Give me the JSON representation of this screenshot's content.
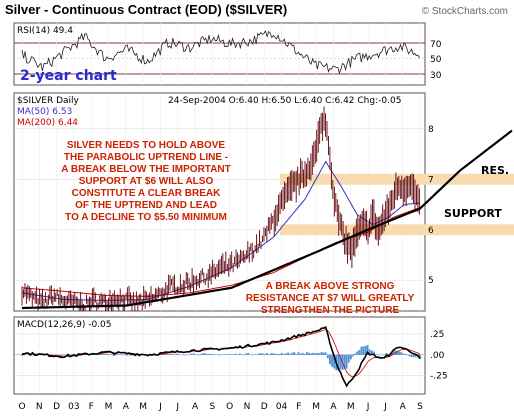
{
  "header": {
    "title": "Silver - Continuous Contract (EOD) ($SILVER)",
    "credit": "© StockCharts.com"
  },
  "rsi_panel": {
    "label": "RSI(14) 49.4",
    "ticks": [
      "70",
      "50",
      "30"
    ],
    "caption": "2-year chart",
    "chart_data": {
      "type": "line",
      "series": [
        {
          "name": "RSI(14)",
          "last": 49.4
        }
      ],
      "ylim": [
        20,
        85
      ],
      "reference_lines": [
        70,
        30
      ],
      "key_points": [
        [
          0,
          52
        ],
        [
          20,
          38
        ],
        [
          40,
          55
        ],
        [
          60,
          72
        ],
        [
          80,
          48
        ],
        [
          100,
          58
        ],
        [
          120,
          45
        ],
        [
          140,
          66
        ],
        [
          160,
          60
        ],
        [
          180,
          70
        ],
        [
          200,
          64
        ],
        [
          220,
          68
        ],
        [
          240,
          78
        ],
        [
          260,
          58
        ],
        [
          280,
          40
        ],
        [
          300,
          36
        ],
        [
          320,
          48
        ],
        [
          340,
          55
        ],
        [
          360,
          62
        ],
        [
          380,
          52
        ],
        [
          400,
          60
        ],
        [
          410,
          38
        ],
        [
          420,
          49
        ]
      ]
    }
  },
  "price_panel": {
    "symbol_label": "$SILVER Daily",
    "ma50_label": "MA(50) 6.53",
    "ma200_label": "MA(200) 6.44",
    "quote": "24-Sep-2004 O:6.40 H:6.50 L:6.40 C:6.42 Chg:-0.05",
    "price_ticks": [
      "8",
      "7",
      "6",
      "5"
    ],
    "annotation_main": [
      "SILVER NEEDS TO HOLD ABOVE",
      "THE PARABOLIC UPTREND LINE -",
      "A BREAK BELOW THE IMPORTANT",
      "SUPPORT AT $6 WILL ALSO",
      "CONSTITUTE A CLEAR BREAK",
      "OF THE UPTREND AND LEAD",
      "TO A DECLINE TO $5.50 MINIMUM"
    ],
    "annotation_breakout": [
      "A BREAK ABOVE STRONG",
      "RESISTANCE AT $7 WILL GREATLY",
      "STRENGTHEN THE PICTURE"
    ],
    "res_label": "RES.",
    "support_label": "SUPPORT",
    "chart_data": {
      "type": "line",
      "title": "Silver - Continuous Contract (EOD) ($SILVER)",
      "ylim": [
        4.45,
        8.65
      ],
      "last_quote": {
        "date": "24-Sep-2004",
        "open": 6.4,
        "high": 6.5,
        "low": 6.4,
        "close": 6.42,
        "change": -0.05
      },
      "resistance": 7.0,
      "support": 6.0,
      "series": [
        {
          "name": "MA(50)",
          "last": 6.53
        },
        {
          "name": "MA(200)",
          "last": 6.44
        }
      ],
      "price_key_points": [
        [
          0,
          4.8
        ],
        [
          10,
          4.65
        ],
        [
          20,
          4.55
        ],
        [
          30,
          4.7
        ],
        [
          40,
          4.6
        ],
        [
          50,
          4.55
        ],
        [
          60,
          4.5
        ],
        [
          70,
          4.6
        ],
        [
          80,
          4.55
        ],
        [
          90,
          4.65
        ],
        [
          100,
          4.6
        ],
        [
          110,
          4.55
        ],
        [
          120,
          4.6
        ],
        [
          130,
          4.7
        ],
        [
          140,
          4.85
        ],
        [
          150,
          4.9
        ],
        [
          160,
          4.95
        ],
        [
          170,
          5.05
        ],
        [
          180,
          5.1
        ],
        [
          190,
          5.25
        ],
        [
          200,
          5.3
        ],
        [
          210,
          5.4
        ],
        [
          220,
          5.6
        ],
        [
          230,
          5.8
        ],
        [
          240,
          6.2
        ],
        [
          250,
          6.6
        ],
        [
          260,
          6.9
        ],
        [
          270,
          7.1
        ],
        [
          280,
          7.5
        ],
        [
          285,
          8.0
        ],
        [
          288,
          8.2
        ],
        [
          292,
          7.9
        ],
        [
          296,
          7.0
        ],
        [
          300,
          6.4
        ],
        [
          305,
          6.0
        ],
        [
          310,
          5.7
        ],
        [
          315,
          5.6
        ],
        [
          320,
          5.9
        ],
        [
          325,
          6.1
        ],
        [
          330,
          6.0
        ],
        [
          335,
          6.3
        ],
        [
          340,
          5.95
        ],
        [
          345,
          6.2
        ],
        [
          350,
          6.4
        ],
        [
          355,
          6.7
        ],
        [
          360,
          6.9
        ],
        [
          365,
          6.8
        ],
        [
          370,
          6.95
        ],
        [
          375,
          6.7
        ],
        [
          378,
          6.6
        ],
        [
          380,
          6.42
        ]
      ],
      "ma50_key_points": [
        [
          0,
          4.75
        ],
        [
          40,
          4.62
        ],
        [
          80,
          4.6
        ],
        [
          120,
          4.62
        ],
        [
          160,
          4.88
        ],
        [
          200,
          5.25
        ],
        [
          240,
          5.85
        ],
        [
          270,
          6.6
        ],
        [
          290,
          7.35
        ],
        [
          305,
          6.85
        ],
        [
          320,
          6.3
        ],
        [
          335,
          6.1
        ],
        [
          350,
          6.25
        ],
        [
          365,
          6.5
        ],
        [
          380,
          6.53
        ]
      ],
      "ma200_key_points": [
        [
          0,
          4.85
        ],
        [
          40,
          4.78
        ],
        [
          80,
          4.7
        ],
        [
          120,
          4.68
        ],
        [
          160,
          4.75
        ],
        [
          200,
          4.9
        ],
        [
          240,
          5.15
        ],
        [
          270,
          5.45
        ],
        [
          300,
          5.75
        ],
        [
          330,
          5.95
        ],
        [
          355,
          6.25
        ],
        [
          380,
          6.44
        ]
      ],
      "uptrend_line": [
        [
          0,
          4.45
        ],
        [
          100,
          4.5
        ],
        [
          200,
          4.85
        ],
        [
          280,
          5.55
        ],
        [
          330,
          6.0
        ],
        [
          380,
          6.42
        ]
      ]
    }
  },
  "macd_panel": {
    "label": "MACD(12,26,9) -0.05",
    "ticks": [
      ".25",
      ".00",
      "-.25"
    ],
    "chart_data": {
      "type": "line",
      "series": [
        {
          "name": "MACD(12,26,9)",
          "last": -0.05
        }
      ],
      "ylim": [
        -0.45,
        0.42
      ],
      "key_points": [
        [
          0,
          0.02
        ],
        [
          40,
          -0.02
        ],
        [
          80,
          0.03
        ],
        [
          120,
          0.0
        ],
        [
          160,
          0.05
        ],
        [
          200,
          0.08
        ],
        [
          240,
          0.15
        ],
        [
          270,
          0.25
        ],
        [
          290,
          0.32
        ],
        [
          300,
          -0.1
        ],
        [
          310,
          -0.38
        ],
        [
          320,
          -0.2
        ],
        [
          330,
          0.02
        ],
        [
          345,
          -0.05
        ],
        [
          360,
          0.1
        ],
        [
          375,
          0.02
        ],
        [
          380,
          -0.05
        ]
      ]
    }
  },
  "x_axis": {
    "ticks": [
      "O",
      "N",
      "D",
      "03",
      "F",
      "M",
      "A",
      "M",
      "J",
      "J",
      "A",
      "S",
      "O",
      "N",
      "D",
      "04",
      "F",
      "M",
      "A",
      "M",
      "J",
      "J",
      "A",
      "S"
    ]
  },
  "colors": {
    "annotation": "#cc2200",
    "price": "#5a0008",
    "ma50": "#3333cc",
    "ma200": "#cc0000",
    "macd_hist": "#4d8fd6",
    "band": "#f8dcb0",
    "caption": "#2a2ad0"
  }
}
